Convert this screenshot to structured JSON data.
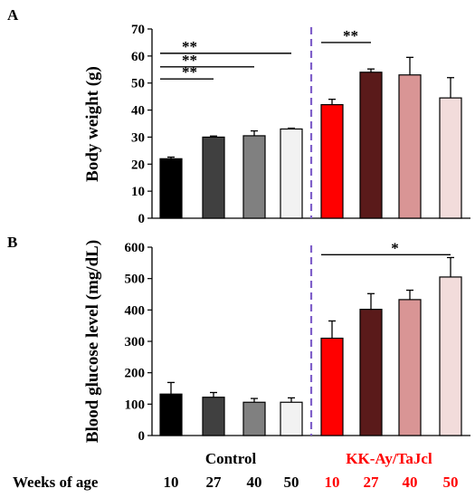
{
  "chart_data": [
    {
      "panel_label": "A",
      "type": "bar",
      "ylabel": "Body weight (g)",
      "ylim": [
        0,
        70
      ],
      "yticks": [
        0,
        10,
        20,
        30,
        40,
        50,
        60,
        70
      ],
      "categories": [
        "10",
        "27",
        "40",
        "50",
        "10",
        "27",
        "40",
        "50"
      ],
      "values": [
        22,
        30,
        30.5,
        33,
        42,
        54,
        53,
        44.5
      ],
      "errors": [
        0.6,
        0.4,
        1.8,
        0.3,
        2,
        1.2,
        6.5,
        7.5
      ],
      "colors": [
        "#000000",
        "#404040",
        "#808080",
        "#f2f2f2",
        "#ff0000",
        "#5a1a1a",
        "#d99595",
        "#f2dcdb"
      ],
      "significance": [
        {
          "from": 0,
          "to": 1,
          "label": "**",
          "level": 51.5
        },
        {
          "from": 0,
          "to": 2,
          "label": "**",
          "level": 56
        },
        {
          "from": 0,
          "to": 3,
          "label": "**",
          "level": 61
        },
        {
          "from": 4,
          "to": 5,
          "label": "**",
          "level": 65
        }
      ]
    },
    {
      "panel_label": "B",
      "type": "bar",
      "ylabel": "Blood glucose level (mg/dL)",
      "ylim": [
        0,
        600
      ],
      "yticks": [
        0,
        100,
        200,
        300,
        400,
        500,
        600
      ],
      "categories": [
        "10",
        "27",
        "40",
        "50",
        "10",
        "27",
        "40",
        "50"
      ],
      "values": [
        132,
        122,
        106,
        106,
        310,
        402,
        433,
        505
      ],
      "errors": [
        37,
        15,
        12,
        14,
        55,
        50,
        30,
        62
      ],
      "colors": [
        "#000000",
        "#404040",
        "#808080",
        "#f2f2f2",
        "#ff0000",
        "#5a1a1a",
        "#d99595",
        "#f2dcdb"
      ],
      "significance": [
        {
          "from": 4,
          "to": 7,
          "label": "*",
          "level": 576
        }
      ]
    }
  ],
  "groups": {
    "control": {
      "label": "Control",
      "color": "#000000"
    },
    "kk": {
      "label": "KK-Ay/TaJcl",
      "color": "#ff0000"
    }
  },
  "weeks_label": "Weeks of age",
  "weeks": [
    "10",
    "27",
    "40",
    "50",
    "10",
    "27",
    "40",
    "50"
  ],
  "week_colors": [
    "#000000",
    "#000000",
    "#000000",
    "#000000",
    "#ff0000",
    "#ff0000",
    "#ff0000",
    "#ff0000"
  ],
  "divider_color": "#7f5fc9"
}
